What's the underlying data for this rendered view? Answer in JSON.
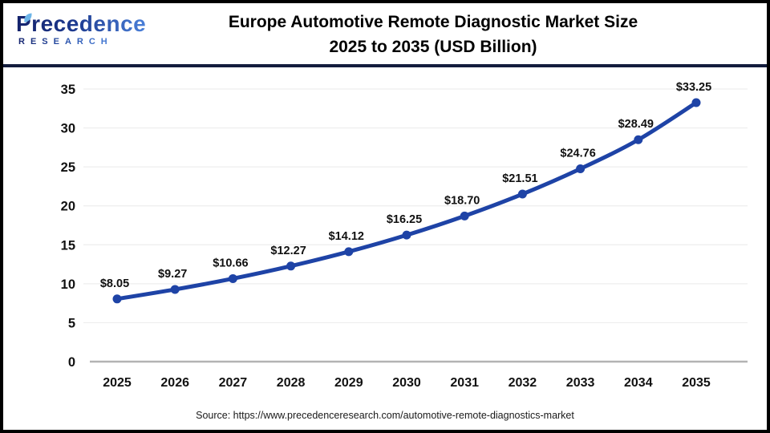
{
  "header": {
    "logo": {
      "brand": "Precedence",
      "sub": "RESEARCH"
    },
    "title_line1": "Europe Automotive Remote Diagnostic Market Size",
    "title_line2": "2025 to 2035 (USD Billion)"
  },
  "chart_data": {
    "type": "line",
    "title": "Europe Automotive Remote Diagnostic Market Size 2025 to 2035 (USD Billion)",
    "categories": [
      "2025",
      "2026",
      "2027",
      "2028",
      "2029",
      "2030",
      "2031",
      "2032",
      "2033",
      "2034",
      "2035"
    ],
    "values": [
      8.05,
      9.27,
      10.66,
      12.27,
      14.12,
      16.25,
      18.7,
      21.51,
      24.76,
      28.49,
      33.25
    ],
    "point_labels": [
      "$8.05",
      "$9.27",
      "$10.66",
      "$12.27",
      "$14.12",
      "$16.25",
      "$18.70",
      "$21.51",
      "$24.76",
      "$28.49",
      "$33.25"
    ],
    "xlabel": "",
    "ylabel": "",
    "ylim": [
      0,
      35
    ],
    "yticks": [
      0,
      5,
      10,
      15,
      20,
      25,
      30,
      35
    ],
    "grid": true,
    "legend": "none",
    "line_color": "#1e43a6",
    "gridline_color": "#ededed",
    "baseline_color": "#b3b3b3",
    "label_color": "#111111"
  },
  "footer": {
    "source": "Source: https://www.precedenceresearch.com/automotive-remote-diagnostics-market"
  },
  "colors": {
    "frame_border": "#000000",
    "header_separator": "#131c3d",
    "logo_navy": "#14226b",
    "logo_blue": "#4a80d9",
    "leaf_blue": "#6db5e8"
  }
}
